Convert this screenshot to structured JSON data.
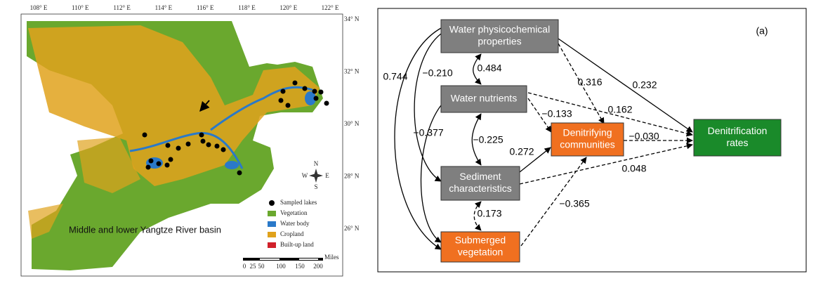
{
  "map": {
    "lon_labels": [
      "108° E",
      "110° E",
      "112° E",
      "114° E",
      "116° E",
      "118° E",
      "120° E",
      "122° E"
    ],
    "lat_labels": [
      "34° N",
      "32° N",
      "30° N",
      "28° N",
      "26° N"
    ],
    "region_label": "Middle and lower Yangtze River basin",
    "legend": [
      "Sampled lakes",
      "Vegetation",
      "Water body",
      "Cropland",
      "Built-up land"
    ],
    "compass": {
      "n": "N",
      "e": "E",
      "s": "S",
      "w": "W"
    },
    "scale_unit": "Miles",
    "scale_labels": [
      "0",
      "25",
      "50",
      "100",
      "150",
      "200"
    ]
  },
  "diagram": {
    "panel_label": "(a)",
    "nodes": [
      {
        "lines": [
          "Water physicochemical",
          "properties"
        ]
      },
      {
        "lines": [
          "Water nutrients"
        ]
      },
      {
        "lines": [
          "Sediment",
          "characteristics"
        ]
      },
      {
        "lines": [
          "Submerged",
          "vegetation"
        ]
      },
      {
        "lines": [
          "Denitrifying",
          "communities"
        ]
      },
      {
        "lines": [
          "Denitrification",
          "rates"
        ]
      }
    ],
    "edges": [
      {
        "label": "0.744"
      },
      {
        "label": "−0.210"
      },
      {
        "label": "0.484"
      },
      {
        "label": "0.316"
      },
      {
        "label": "0.232"
      },
      {
        "label": "−0.133"
      },
      {
        "label": "0.162"
      },
      {
        "label": "−0.377"
      },
      {
        "label": "−0.225"
      },
      {
        "label": "0.272"
      },
      {
        "label": "−0.030"
      },
      {
        "label": "0.048"
      },
      {
        "label": "0.173"
      },
      {
        "label": "−0.365"
      }
    ]
  }
}
